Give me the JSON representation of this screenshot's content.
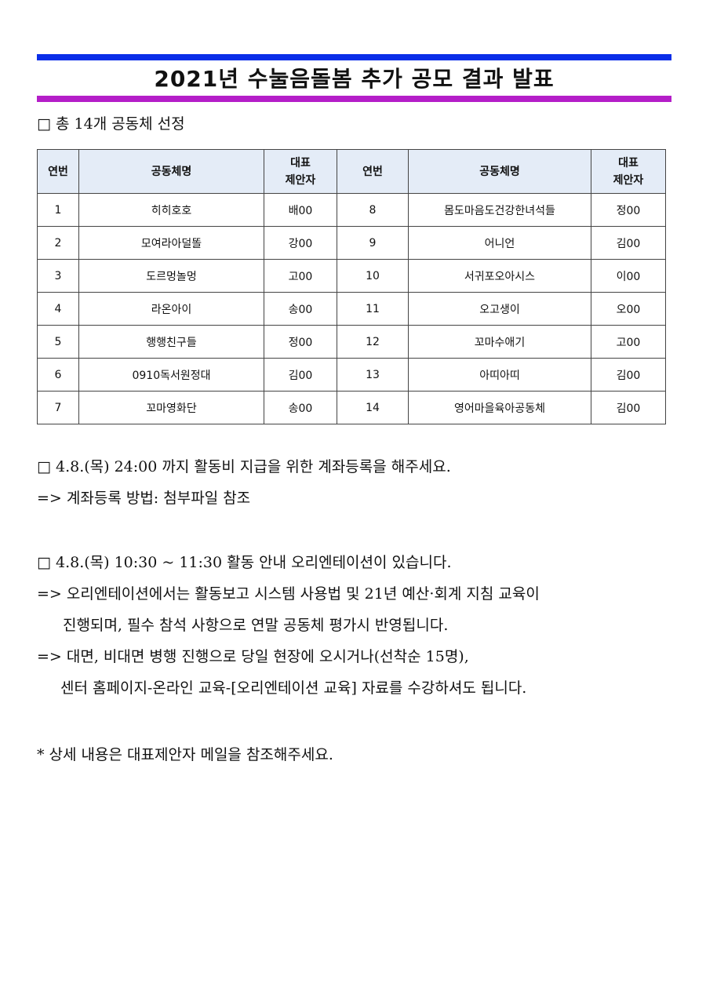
{
  "colors": {
    "top_bar": "#0a2ee8",
    "bottom_bar": "#b41ec8",
    "header_bg": "#e4ecf7"
  },
  "title": "2021년 수눌음돌봄 추가 공모 결과 발표",
  "summary": "□ 총 14개 공동체 선정",
  "table": {
    "headers": [
      "연번",
      "공동체명",
      "대표\n제안자",
      "연번",
      "공동체명",
      "대표\n제안자"
    ],
    "header_rep_line1": "대표",
    "header_rep_line2": "제안자",
    "rows": [
      [
        "1",
        "히히호호",
        "배00",
        "8",
        "몸도마음도건강한녀석들",
        "정00"
      ],
      [
        "2",
        "모여라아덜똘",
        "강00",
        "9",
        "어니언",
        "김00"
      ],
      [
        "3",
        "도르멍놀멍",
        "고00",
        "10",
        "서귀포오아시스",
        "이00"
      ],
      [
        "4",
        "라온아이",
        "송00",
        "11",
        "오고생이",
        "오00"
      ],
      [
        "5",
        "행행친구들",
        "정00",
        "12",
        "꼬마수애기",
        "고00"
      ],
      [
        "6",
        "0910독서원정대",
        "김00",
        "13",
        "아띠아띠",
        "김00"
      ],
      [
        "7",
        "꼬마영화단",
        "송00",
        "14",
        "영어마을육아공동체",
        "김00"
      ]
    ]
  },
  "notices": [
    "□ 4.8.(목) 24:00 까지 활동비 지급을 위한 계좌등록을 해주세요.",
    "=> 계좌등록 방법: 첨부파일 참조",
    "□ 4.8.(목) 10:30 ~ 11:30 활동 안내 오리엔테이션이 있습니다.",
    "=> 오리엔테이션에서는 활동보고 시스템 사용법 및 21년 예산·회계 지침 교육이",
    "진행되며, 필수 참석 사항으로 연말 공동체 평가시 반영됩니다.",
    "=> 대면, 비대면 병행 진행으로 당일 현장에 오시거나(선착순 15명),",
    "센터 홈페이지-온라인 교육-[오리엔테이션 교육] 자료를 수강하셔도 됩니다.",
    "* 상세 내용은 대표제안자 메일을 참조해주세요."
  ]
}
